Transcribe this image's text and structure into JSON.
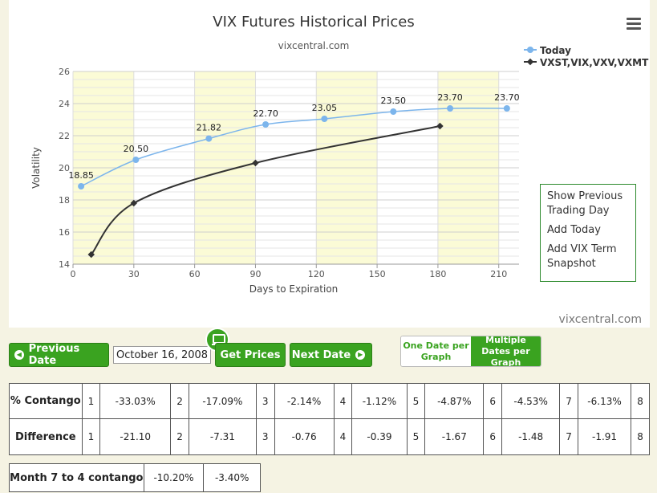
{
  "chart_data": {
    "type": "line",
    "title": "VIX Futures Historical Prices",
    "subtitle": "vixcentral.com",
    "xlabel": "Days to Expiration",
    "ylabel": "Volatility",
    "xlim": [
      0,
      220
    ],
    "ylim": [
      14,
      26
    ],
    "xticks": [
      "0",
      "30",
      "60",
      "90",
      "120",
      "150",
      "180",
      "210"
    ],
    "yticks": [
      "14",
      "16",
      "18",
      "20",
      "22",
      "24",
      "26"
    ],
    "legend_position": "top-right",
    "series": [
      {
        "name": "Today",
        "color": "#7cb5ec",
        "points": [
          [
            4,
            18.85
          ],
          [
            31,
            20.5
          ],
          [
            67,
            21.82
          ],
          [
            95,
            22.7
          ],
          [
            124,
            23.05
          ],
          [
            158,
            23.5
          ],
          [
            186,
            23.7
          ],
          [
            214,
            23.7
          ]
        ],
        "labels": [
          "18.85",
          "20.50",
          "21.82",
          "22.70",
          "23.05",
          "23.50",
          "23.70",
          "23.70"
        ]
      },
      {
        "name": "VXST,VIX,VXV,VXMT",
        "color": "#333333",
        "points": [
          [
            9,
            14.6
          ],
          [
            30,
            17.8
          ],
          [
            90,
            20.3
          ],
          [
            181,
            22.6
          ]
        ]
      }
    ]
  },
  "menu": {
    "items": [
      "Show Previous Trading Day",
      "Add Today",
      "Add VIX Term Snapshot"
    ]
  },
  "credit": "vixcentral.com",
  "controls": {
    "prev_label": "Previous Date",
    "date_value": "October 16, 2008",
    "get_label": "Get Prices",
    "next_label": "Next Date",
    "one_date": "One Date per Graph",
    "multi_date": "Multiple Dates per Graph"
  },
  "contango_table": {
    "label": "% Contango",
    "values": [
      "-33.03%",
      "-17.09%",
      "-2.14%",
      "-1.12%",
      "-4.87%",
      "-4.53%",
      "-6.13%"
    ],
    "indexes": [
      "1",
      "2",
      "3",
      "4",
      "5",
      "6",
      "7",
      "8"
    ]
  },
  "difference_table": {
    "label": "Difference",
    "values": [
      "-21.10",
      "-7.31",
      "-0.76",
      "-0.39",
      "-1.67",
      "-1.48",
      "-1.91"
    ],
    "indexes": [
      "1",
      "2",
      "3",
      "4",
      "5",
      "6",
      "7",
      "8"
    ]
  },
  "month_table": {
    "label": "Month 7 to 4 contango",
    "values": [
      "-10.20%",
      "-3.40%"
    ]
  }
}
